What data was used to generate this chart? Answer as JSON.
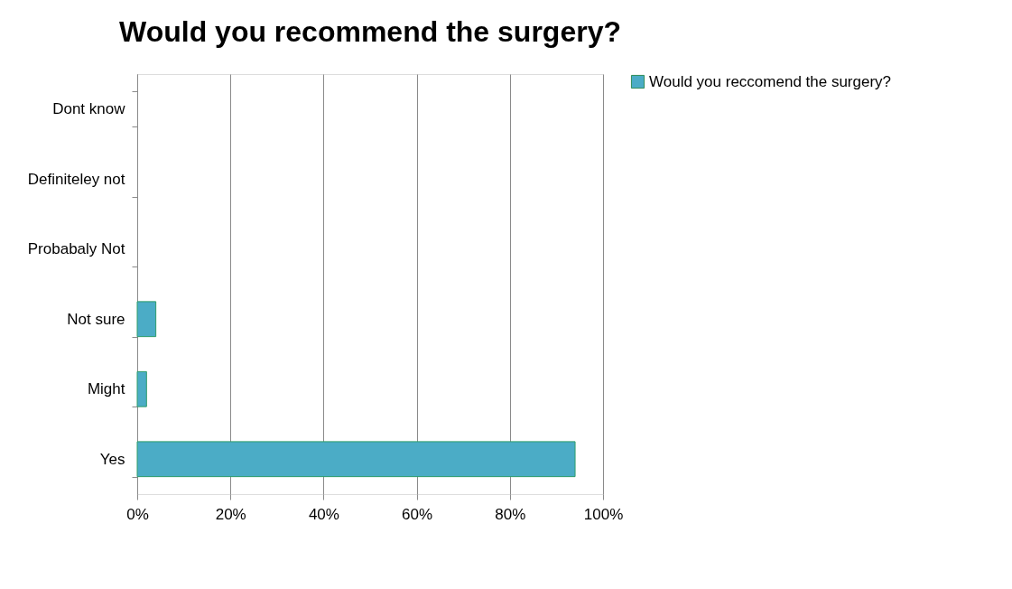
{
  "chart_data": {
    "type": "bar",
    "orientation": "horizontal",
    "title": "Would you recommend the surgery?",
    "categories": [
      "Dont know",
      "Definiteley not",
      "Probabaly Not",
      "Not sure",
      "Might",
      "Yes"
    ],
    "series": [
      {
        "name": "Would you reccomend the surgery?",
        "color": "#4bacc6",
        "values": [
          0,
          0,
          0,
          4,
          2,
          94
        ]
      }
    ],
    "xlim": [
      0,
      100
    ],
    "xticks": [
      {
        "value": 0,
        "label": "0%"
      },
      {
        "value": 20,
        "label": "20%"
      },
      {
        "value": 40,
        "label": "40%"
      },
      {
        "value": 60,
        "label": "60%"
      },
      {
        "value": 80,
        "label": "80%"
      },
      {
        "value": 100,
        "label": "100%"
      }
    ],
    "grid": "x",
    "legend": "right"
  }
}
